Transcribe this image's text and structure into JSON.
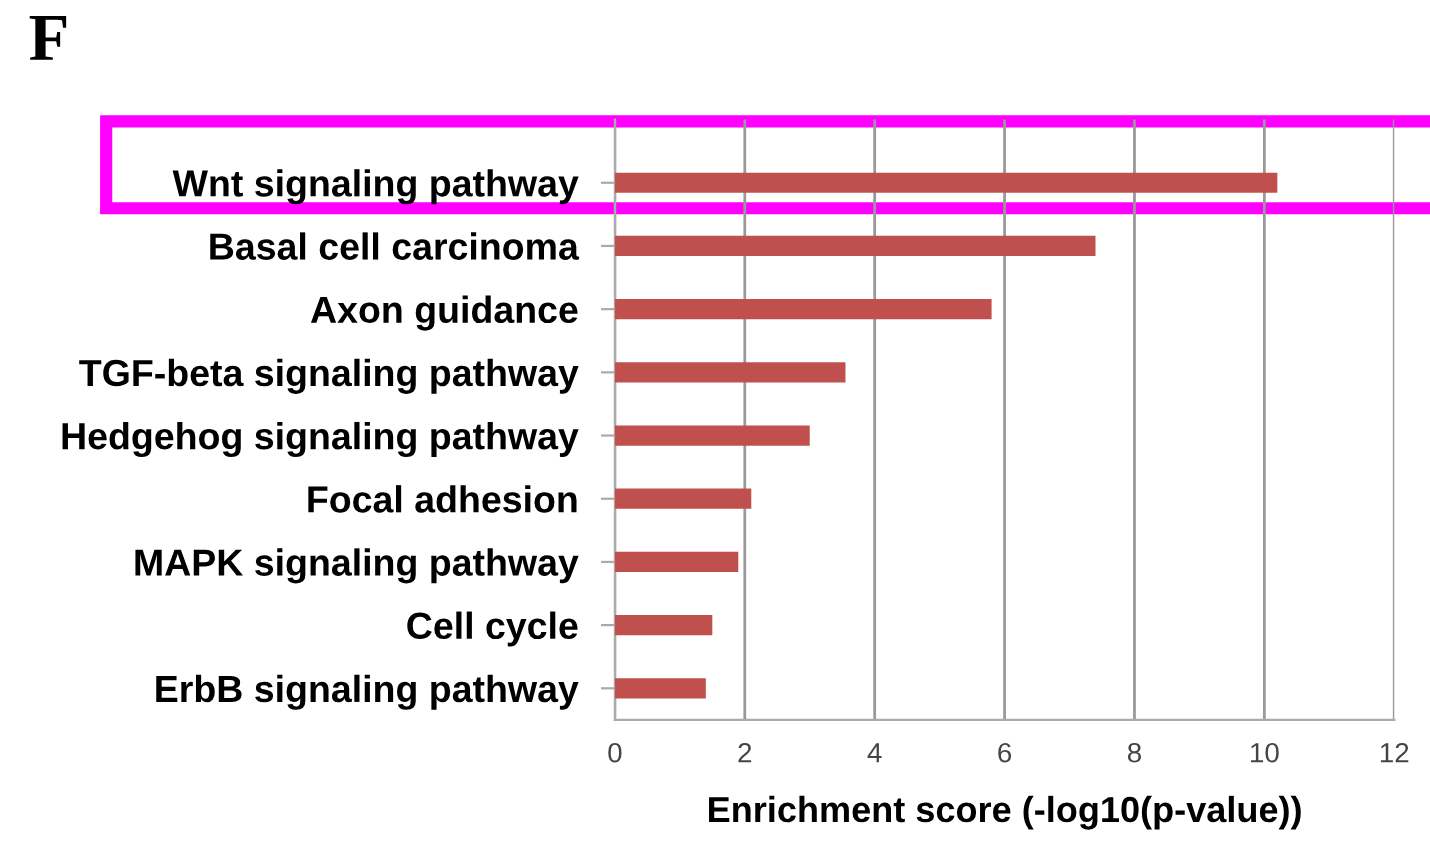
{
  "chart_data": {
    "type": "bar",
    "orientation": "horizontal",
    "title": "F",
    "xlabel": "Enrichment score (-log10(p-value))",
    "categories": [
      "Wnt signaling pathway",
      "Basal cell carcinoma",
      "Axon guidance",
      "TGF-beta signaling pathway",
      "Hedgehog signaling pathway",
      "Focal adhesion",
      "MAPK signaling pathway",
      "Cell cycle",
      "ErbB signaling pathway"
    ],
    "values": [
      10.2,
      7.4,
      5.8,
      3.55,
      3.0,
      2.1,
      1.9,
      1.5,
      1.4
    ],
    "color": "#c0504d",
    "xlim": [
      0,
      12
    ],
    "xticks": [
      0,
      2,
      4,
      6,
      8,
      10,
      12
    ],
    "grid": "x",
    "legend": false
  }
}
